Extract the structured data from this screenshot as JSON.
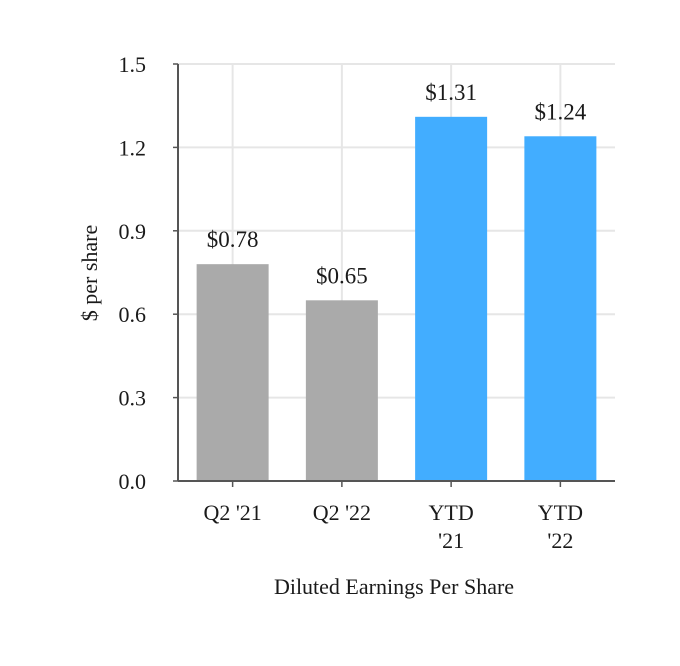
{
  "chart_data": {
    "type": "bar",
    "categories": [
      [
        "Q2 '21"
      ],
      [
        "Q2 '22"
      ],
      [
        "YTD",
        "'21"
      ],
      [
        "YTD",
        "'22"
      ]
    ],
    "values": [
      0.78,
      0.65,
      1.31,
      1.24
    ],
    "data_labels": [
      "$0.78",
      "$0.65",
      "$1.31",
      "$1.24"
    ],
    "bar_colors": [
      "#aaaaaa",
      "#aaaaaa",
      "#42adff",
      "#42adff"
    ],
    "title": "",
    "xlabel": "Diluted Earnings Per Share",
    "ylabel": "$ per share",
    "ylim": [
      0,
      1.5
    ],
    "yticks": [
      0.0,
      0.3,
      0.6,
      0.9,
      1.2,
      1.5
    ],
    "ytick_labels": [
      "0.0",
      "0.3",
      "0.6",
      "0.9",
      "1.2",
      "1.5"
    ],
    "grid": true,
    "grid_color": "#e6e6e6",
    "axis_color": "#555555"
  }
}
